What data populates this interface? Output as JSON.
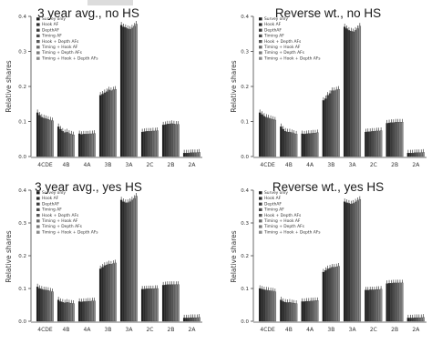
{
  "chart_data": [
    {
      "type": "bar",
      "title": "3 year avg., no HS",
      "ylabel": "Relative shares",
      "ylim": [
        0,
        0.4
      ],
      "yticks": [
        "0.0",
        "0.1",
        "0.2",
        "0.3",
        "0.4"
      ],
      "categories": [
        "4CDE",
        "4B",
        "4A",
        "3B",
        "3A",
        "2C",
        "2B",
        "2A"
      ],
      "legend_position": "top-left",
      "series": [
        {
          "name": "Survey only",
          "values": [
            0.125,
            0.085,
            0.065,
            0.175,
            0.375,
            0.07,
            0.09,
            0.01
          ]
        },
        {
          "name": "Hook AF",
          "values": [
            0.118,
            0.078,
            0.063,
            0.178,
            0.37,
            0.071,
            0.091,
            0.01
          ]
        },
        {
          "name": "DepthAF",
          "values": [
            0.112,
            0.072,
            0.064,
            0.182,
            0.368,
            0.072,
            0.093,
            0.01
          ]
        },
        {
          "name": "Timing AF",
          "values": [
            0.11,
            0.068,
            0.064,
            0.185,
            0.365,
            0.072,
            0.093,
            0.011
          ]
        },
        {
          "name": "Hook + Depth AFs",
          "values": [
            0.108,
            0.07,
            0.064,
            0.19,
            0.363,
            0.072,
            0.094,
            0.011
          ]
        },
        {
          "name": "Timing + Hook AF",
          "values": [
            0.106,
            0.066,
            0.065,
            0.188,
            0.367,
            0.073,
            0.093,
            0.011
          ]
        },
        {
          "name": "Timing + Depth AFs",
          "values": [
            0.104,
            0.064,
            0.065,
            0.19,
            0.372,
            0.073,
            0.092,
            0.011
          ]
        },
        {
          "name": "Timing + Hook + Depth AFs",
          "values": [
            0.102,
            0.062,
            0.066,
            0.192,
            0.378,
            0.074,
            0.092,
            0.012
          ]
        }
      ]
    },
    {
      "type": "bar",
      "title": "Reverse wt., no HS",
      "ylabel": "Relative shares",
      "ylim": [
        0,
        0.4
      ],
      "yticks": [
        "0.0",
        "0.1",
        "0.2",
        "0.3",
        "0.4"
      ],
      "categories": [
        "4CDE",
        "4B",
        "4A",
        "3B",
        "3A",
        "2C",
        "2B",
        "2A"
      ],
      "legend_position": "top-left",
      "series": [
        {
          "name": "Survey only",
          "values": [
            0.125,
            0.085,
            0.065,
            0.16,
            0.37,
            0.07,
            0.095,
            0.01
          ]
        },
        {
          "name": "Hook AF",
          "values": [
            0.12,
            0.078,
            0.064,
            0.165,
            0.365,
            0.071,
            0.096,
            0.01
          ]
        },
        {
          "name": "DepthAF",
          "values": [
            0.115,
            0.072,
            0.065,
            0.175,
            0.36,
            0.071,
            0.097,
            0.01
          ]
        },
        {
          "name": "Timing AF",
          "values": [
            0.112,
            0.07,
            0.066,
            0.18,
            0.358,
            0.072,
            0.097,
            0.011
          ]
        },
        {
          "name": "Hook + Depth AFs",
          "values": [
            0.11,
            0.07,
            0.066,
            0.188,
            0.356,
            0.072,
            0.098,
            0.011
          ]
        },
        {
          "name": "Timing + Hook AF",
          "values": [
            0.108,
            0.068,
            0.067,
            0.188,
            0.36,
            0.073,
            0.098,
            0.011
          ]
        },
        {
          "name": "Timing + Depth AFs",
          "values": [
            0.106,
            0.066,
            0.067,
            0.19,
            0.365,
            0.073,
            0.098,
            0.011
          ]
        },
        {
          "name": "Timing + Hook + Depth AFs",
          "values": [
            0.104,
            0.064,
            0.068,
            0.192,
            0.372,
            0.074,
            0.098,
            0.012
          ]
        }
      ]
    },
    {
      "type": "bar",
      "title": "3 year avg., yes HS",
      "ylabel": "Relative shares",
      "ylim": [
        0,
        0.4
      ],
      "yticks": [
        "0.0",
        "0.1",
        "0.2",
        "0.3",
        "0.4"
      ],
      "categories": [
        "4CDE",
        "4B",
        "4A",
        "3B",
        "3A",
        "2C",
        "2B",
        "2A"
      ],
      "legend_position": "top-left",
      "series": [
        {
          "name": "Survey only",
          "values": [
            0.105,
            0.065,
            0.06,
            0.16,
            0.37,
            0.098,
            0.11,
            0.01
          ]
        },
        {
          "name": "Hook AF",
          "values": [
            0.1,
            0.06,
            0.059,
            0.165,
            0.365,
            0.098,
            0.111,
            0.01
          ]
        },
        {
          "name": "DepthAF",
          "values": [
            0.098,
            0.058,
            0.06,
            0.17,
            0.362,
            0.099,
            0.112,
            0.01
          ]
        },
        {
          "name": "Timing AF",
          "values": [
            0.096,
            0.056,
            0.06,
            0.172,
            0.362,
            0.099,
            0.112,
            0.011
          ]
        },
        {
          "name": "Hook + Depth AFs",
          "values": [
            0.095,
            0.058,
            0.061,
            0.175,
            0.365,
            0.099,
            0.112,
            0.011
          ]
        },
        {
          "name": "Timing + Hook AF",
          "values": [
            0.094,
            0.056,
            0.061,
            0.174,
            0.37,
            0.099,
            0.112,
            0.011
          ]
        },
        {
          "name": "Timing + Depth AFs",
          "values": [
            0.092,
            0.055,
            0.062,
            0.176,
            0.375,
            0.1,
            0.112,
            0.011
          ]
        },
        {
          "name": "Timing + Hook + Depth AFs",
          "values": [
            0.09,
            0.054,
            0.062,
            0.178,
            0.382,
            0.1,
            0.112,
            0.012
          ]
        }
      ]
    },
    {
      "type": "bar",
      "title": "Reverse wt., yes HS",
      "ylabel": "Relative shares",
      "ylim": [
        0,
        0.4
      ],
      "yticks": [
        "0.0",
        "0.1",
        "0.2",
        "0.3",
        "0.4"
      ],
      "categories": [
        "4CDE",
        "4B",
        "4A",
        "3B",
        "3A",
        "2C",
        "2B",
        "2A"
      ],
      "legend_position": "top-left",
      "series": [
        {
          "name": "Survey only",
          "values": [
            0.1,
            0.065,
            0.06,
            0.15,
            0.365,
            0.095,
            0.115,
            0.01
          ]
        },
        {
          "name": "Hook AF",
          "values": [
            0.098,
            0.06,
            0.06,
            0.155,
            0.362,
            0.095,
            0.116,
            0.01
          ]
        },
        {
          "name": "DepthAF",
          "values": [
            0.096,
            0.058,
            0.061,
            0.16,
            0.36,
            0.096,
            0.116,
            0.01
          ]
        },
        {
          "name": "Timing AF",
          "values": [
            0.095,
            0.057,
            0.061,
            0.162,
            0.358,
            0.096,
            0.117,
            0.011
          ]
        },
        {
          "name": "Hook + Depth AFs",
          "values": [
            0.094,
            0.058,
            0.062,
            0.165,
            0.36,
            0.096,
            0.117,
            0.011
          ]
        },
        {
          "name": "Timing + Hook AF",
          "values": [
            0.093,
            0.056,
            0.062,
            0.165,
            0.364,
            0.097,
            0.117,
            0.011
          ]
        },
        {
          "name": "Timing + Depth AFs",
          "values": [
            0.092,
            0.055,
            0.063,
            0.166,
            0.368,
            0.097,
            0.117,
            0.011
          ]
        },
        {
          "name": "Timing + Hook + Depth AFs",
          "values": [
            0.09,
            0.054,
            0.063,
            0.168,
            0.372,
            0.098,
            0.117,
            0.012
          ]
        }
      ]
    }
  ]
}
